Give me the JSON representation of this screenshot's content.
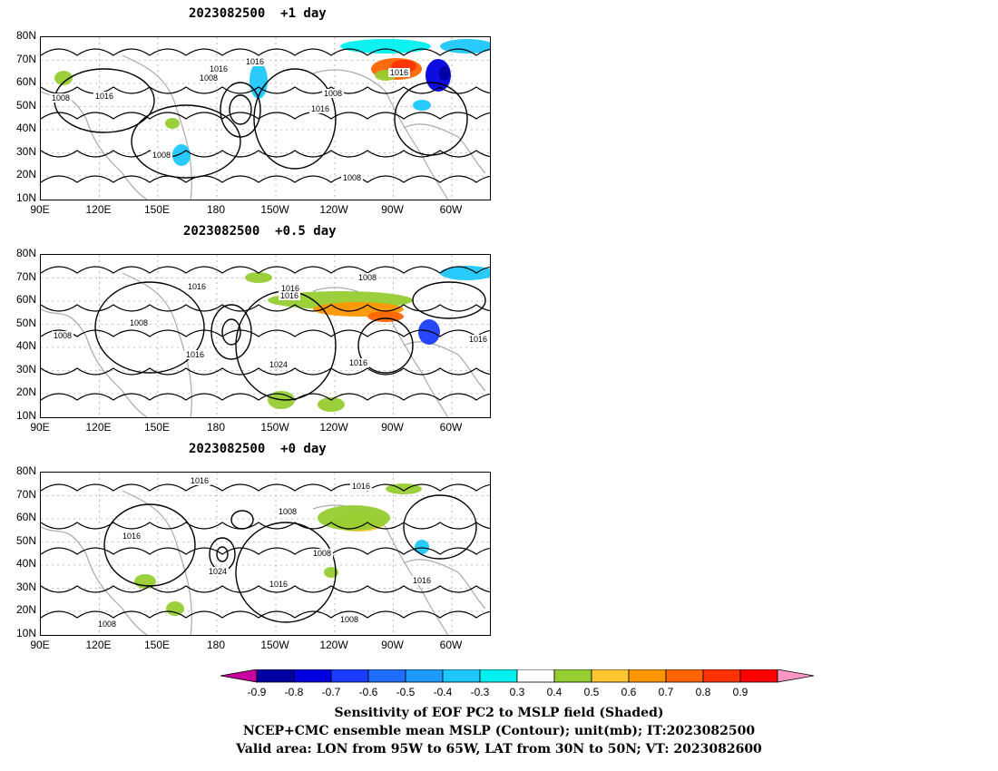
{
  "panels": [
    {
      "title": "2023082500  +1 day",
      "contour_labels": [
        "1008",
        "1016",
        "1016",
        "1008",
        "1016",
        "1008",
        "1016",
        "1016",
        "1008",
        "1008"
      ]
    },
    {
      "title": "2023082500  +0.5 day",
      "contour_labels": [
        "1016",
        "1008",
        "1016",
        "1016",
        "1008",
        "1016",
        "1024",
        "1016",
        "1008",
        "1016"
      ]
    },
    {
      "title": "2023082500  +0 day",
      "contour_labels": [
        "1016",
        "1016",
        "1008",
        "1016",
        "1024",
        "1016",
        "1008",
        "1008",
        "1016",
        "1008"
      ]
    }
  ],
  "lat_ticks": [
    "80N",
    "70N",
    "60N",
    "50N",
    "40N",
    "30N",
    "20N",
    "10N"
  ],
  "lon_ticks": [
    "90E",
    "120E",
    "150E",
    "180",
    "150W",
    "120W",
    "90W",
    "60W"
  ],
  "colorbar": {
    "labels": [
      "-0.9",
      "-0.8",
      "-0.7",
      "-0.6",
      "-0.5",
      "-0.4",
      "-0.3",
      "0.3",
      "0.4",
      "0.5",
      "0.6",
      "0.7",
      "0.8",
      "0.9"
    ],
    "colors": [
      "#0000a0",
      "#0000e0",
      "#1a3cff",
      "#1e6eff",
      "#1e9bff",
      "#1ec8ff",
      "#00f0f0",
      "#ffffff",
      "#96cd32",
      "#ffc832",
      "#ff9600",
      "#ff6400",
      "#ff3200",
      "#ff0000"
    ],
    "under_color": "#c800a0",
    "over_color": "#ff96c8"
  },
  "captions": {
    "line1": "Sensitivity of EOF PC2 to MSLP field (Shaded)",
    "line2": "NCEP+CMC ensemble mean MSLP (Contour); unit(mb); IT:2023082500",
    "line3": "Valid area: LON from 95W to 65W, LAT from 30N to 50N; VT: 2023082600"
  },
  "colors": {
    "contour": "#000000",
    "coast": "#aaaaaa",
    "grid": "#888888"
  }
}
